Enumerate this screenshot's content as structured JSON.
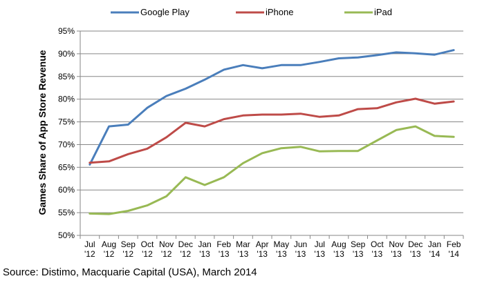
{
  "chart_data": {
    "type": "line",
    "ylabel": "Games Share of App Store Revenue",
    "xlabel": "",
    "ylim": [
      50,
      95
    ],
    "yticks": [
      50,
      55,
      60,
      65,
      70,
      75,
      80,
      85,
      90,
      95
    ],
    "ytick_suffix": "%",
    "grid": "horizontal",
    "legend_position": "top",
    "categories": [
      [
        "Jul",
        "'12"
      ],
      [
        "Aug",
        "'12"
      ],
      [
        "Sep",
        "'12"
      ],
      [
        "Oct",
        "'12"
      ],
      [
        "Nov",
        "'12"
      ],
      [
        "Dec",
        "'12"
      ],
      [
        "Jan",
        "'13"
      ],
      [
        "Feb",
        "'13"
      ],
      [
        "Mar",
        "'13"
      ],
      [
        "Apr",
        "'13"
      ],
      [
        "May",
        "'13"
      ],
      [
        "Jun",
        "'13"
      ],
      [
        "Jul",
        "'13"
      ],
      [
        "Aug",
        "'13"
      ],
      [
        "Sep",
        "'13"
      ],
      [
        "Oct",
        "'13"
      ],
      [
        "Nov",
        "'13"
      ],
      [
        "Dec",
        "'13"
      ],
      [
        "Jan",
        "'14"
      ],
      [
        "Feb",
        "'14"
      ]
    ],
    "series": [
      {
        "name": "Google Play",
        "color": "#4a7ebb",
        "values": [
          65.6,
          74.0,
          74.4,
          78.1,
          80.7,
          82.3,
          84.3,
          86.5,
          87.5,
          86.8,
          87.5,
          87.5,
          88.2,
          89.0,
          89.2,
          89.7,
          90.3,
          90.1,
          89.8,
          90.8
        ]
      },
      {
        "name": "iPhone",
        "color": "#be4b48",
        "values": [
          66.0,
          66.3,
          67.9,
          69.1,
          71.6,
          74.8,
          74.0,
          75.6,
          76.4,
          76.6,
          76.6,
          76.8,
          76.1,
          76.4,
          77.8,
          78.0,
          79.3,
          80.1,
          79.0,
          79.5
        ]
      },
      {
        "name": "iPad",
        "color": "#98b954",
        "values": [
          54.8,
          54.7,
          55.4,
          56.6,
          58.6,
          62.8,
          61.1,
          62.8,
          65.9,
          68.1,
          69.2,
          69.5,
          68.5,
          68.6,
          68.6,
          70.9,
          73.2,
          74.0,
          71.9,
          71.7
        ]
      }
    ]
  },
  "source_text": "Source: Distimo, Macquarie Capital (USA), March 2014"
}
